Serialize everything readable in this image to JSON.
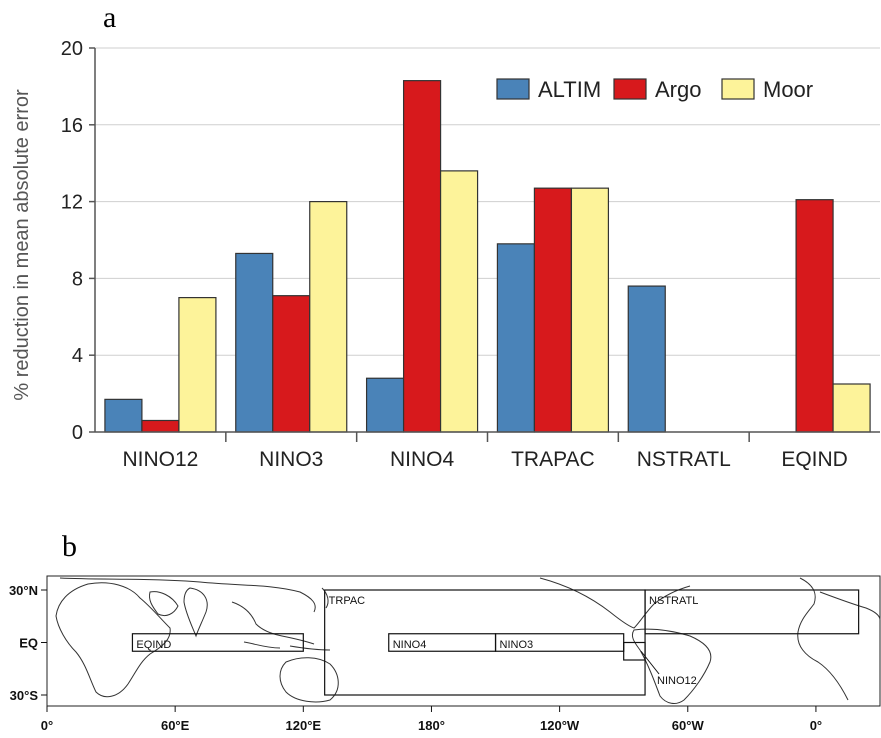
{
  "panels": {
    "a": {
      "letter": "a"
    },
    "b": {
      "letter": "b"
    }
  },
  "chart_data": [
    {
      "type": "bar",
      "title": "",
      "xlabel": "",
      "ylabel": "% reduction in mean absolute error",
      "ylim": [
        0,
        20
      ],
      "yticks": [
        0,
        4,
        8,
        12,
        16,
        20
      ],
      "grid": true,
      "legend_position": "top-right",
      "categories": [
        "NINO12",
        "NINO3",
        "NINO4",
        "TRAPAC",
        "NSTRATL",
        "EQIND"
      ],
      "series": [
        {
          "name": "ALTIM",
          "color": "#4a83b8",
          "values": [
            1.7,
            9.3,
            2.8,
            9.8,
            7.6,
            null
          ]
        },
        {
          "name": "Argo",
          "color": "#d7191c",
          "values": [
            0.6,
            7.1,
            18.3,
            12.7,
            null,
            12.1
          ]
        },
        {
          "name": "Moor",
          "color": "#fdf39a",
          "values": [
            7.0,
            12.0,
            13.6,
            12.7,
            null,
            2.5
          ]
        }
      ]
    },
    {
      "type": "map",
      "x_tick_labels": [
        "0°",
        "60°E",
        "120°E",
        "180°",
        "120°W",
        "60°W",
        "0°"
      ],
      "y_tick_labels": [
        "30°N",
        "EQ",
        "30°S"
      ],
      "regions": [
        {
          "name": "TRPAC",
          "lon": [
            130,
            280
          ],
          "lat": [
            -30,
            30
          ]
        },
        {
          "name": "NSTRATL",
          "lon": [
            280,
            380
          ],
          "lat": [
            5,
            30
          ]
        },
        {
          "name": "EQIND",
          "lon": [
            40,
            120
          ],
          "lat": [
            -5,
            5
          ]
        },
        {
          "name": "NINO4",
          "lon": [
            160,
            210
          ],
          "lat": [
            -5,
            5
          ]
        },
        {
          "name": "NINO3",
          "lon": [
            210,
            270
          ],
          "lat": [
            -5,
            5
          ]
        },
        {
          "name": "NINO12",
          "lon": [
            270,
            280
          ],
          "lat": [
            -10,
            0
          ]
        }
      ]
    }
  ]
}
